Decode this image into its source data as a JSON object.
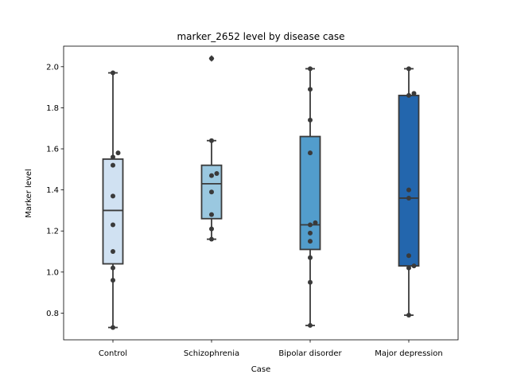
{
  "chart_data": {
    "type": "box",
    "title": "marker_2652 level by disease case",
    "xlabel": "Case",
    "ylabel": "Marker level",
    "ylim": [
      0.67,
      2.1
    ],
    "yticks": [
      0.8,
      1.0,
      1.2,
      1.4,
      1.6,
      1.8,
      2.0
    ],
    "ytick_labels": [
      "0.8",
      "1.0",
      "1.2",
      "1.4",
      "1.6",
      "1.8",
      "2.0"
    ],
    "grid": false,
    "categories": [
      "Control",
      "Schizophrenia",
      "Bipolar disorder",
      "Major depression"
    ],
    "colors": [
      "#d0e1f2",
      "#9ac8e0",
      "#529dcc",
      "#2366ad"
    ],
    "edge_color": "#3a3a3a",
    "point_color": "#3a3a3a",
    "boxes": [
      {
        "category": "Control",
        "q1": 1.04,
        "median": 1.3,
        "q3": 1.55,
        "whisker_low": 0.73,
        "whisker_high": 1.97,
        "outliers": [],
        "points": [
          0.73,
          0.96,
          1.02,
          1.1,
          1.23,
          1.37,
          1.52,
          1.56,
          1.58,
          1.97
        ]
      },
      {
        "category": "Schizophrenia",
        "q1": 1.26,
        "median": 1.43,
        "q3": 1.52,
        "whisker_low": 1.16,
        "whisker_high": 1.64,
        "outliers": [
          2.04
        ],
        "points": [
          1.16,
          1.21,
          1.28,
          1.39,
          1.47,
          1.48,
          1.64,
          2.04
        ]
      },
      {
        "category": "Bipolar disorder",
        "q1": 1.11,
        "median": 1.23,
        "q3": 1.66,
        "whisker_low": 0.74,
        "whisker_high": 1.99,
        "outliers": [],
        "points": [
          0.74,
          0.95,
          1.07,
          1.15,
          1.19,
          1.23,
          1.24,
          1.58,
          1.74,
          1.89,
          1.99
        ]
      },
      {
        "category": "Major depression",
        "q1": 1.03,
        "median": 1.36,
        "q3": 1.86,
        "whisker_low": 0.79,
        "whisker_high": 1.99,
        "outliers": [],
        "points": [
          0.79,
          1.02,
          1.03,
          1.08,
          1.36,
          1.4,
          1.86,
          1.87,
          1.99
        ]
      }
    ]
  }
}
